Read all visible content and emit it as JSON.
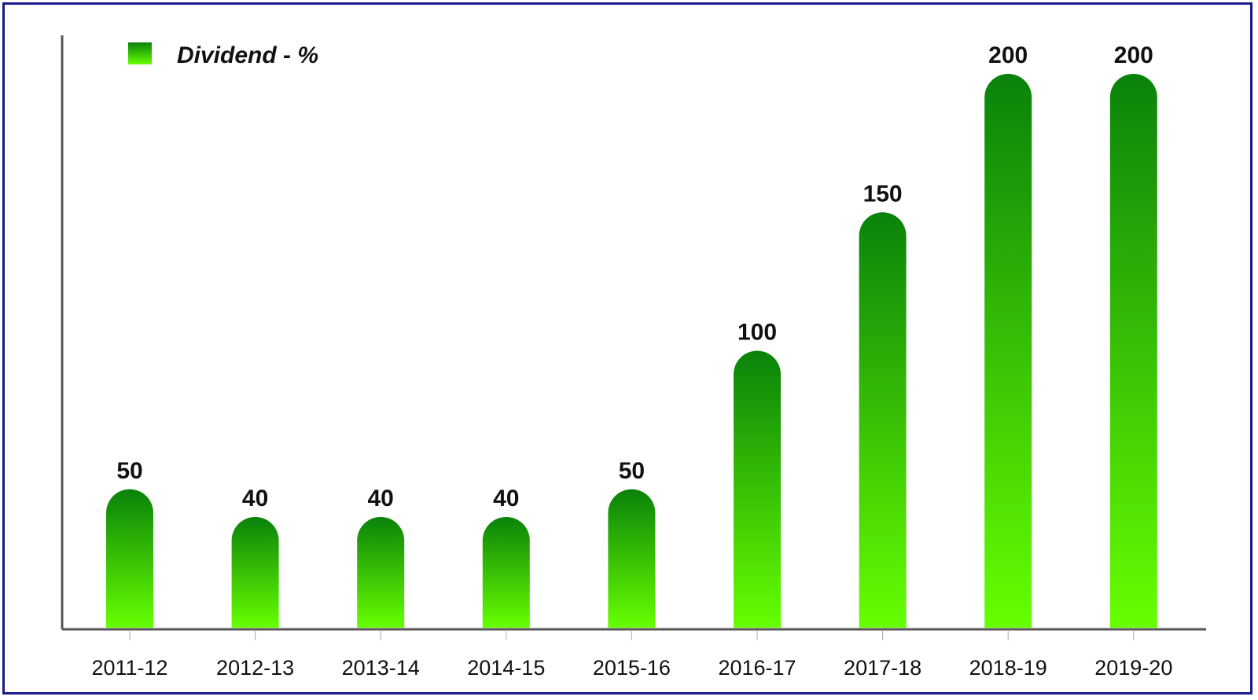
{
  "chart_data": {
    "type": "bar",
    "categories": [
      "2011-12",
      "2012-13",
      "2013-14",
      "2014-15",
      "2015-16",
      "2016-17",
      "2017-18",
      "2018-19",
      "2019-20"
    ],
    "series": [
      {
        "name": "Dividend - %",
        "values": [
          50,
          40,
          40,
          40,
          50,
          100,
          150,
          200,
          200
        ]
      }
    ],
    "ylim": [
      0,
      200
    ],
    "grid": false,
    "legend_position": "top-left",
    "colors": {
      "bar_top": "#0a820a",
      "bar_bottom": "#66ff00",
      "axis": "#555555",
      "frame": "#1a1a8c"
    }
  }
}
